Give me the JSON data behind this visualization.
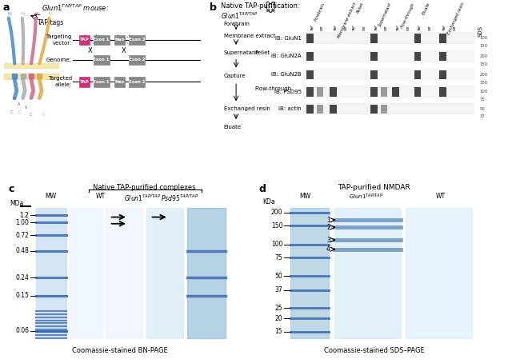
{
  "fig_width": 6.5,
  "fig_height": 4.54,
  "bg_color": "#ffffff",
  "panel_c": {
    "label": "c",
    "title": "Native TAP-purified complexes",
    "mw_label": "MDa",
    "mw_ticks": [
      1.2,
      1.0,
      0.72,
      0.48,
      0.24,
      0.15,
      0.06
    ],
    "lane_labels": [
      "MW",
      "WT",
      "Glun1",
      "Psd95"
    ],
    "xlabel": "Coomassie-stained BN-PAGE"
  },
  "panel_d": {
    "label": "d",
    "title": "TAP-purified NMDAR",
    "mw_label": "KDa",
    "mw_ticks": [
      200,
      150,
      100,
      75,
      50,
      37,
      25,
      20,
      15
    ],
    "lane_labels": [
      "MW",
      "Glun1",
      "WT"
    ],
    "xlabel": "Coomassie-stained SDS–PAGE",
    "bands": [
      {
        "label": "1",
        "kda": 170
      },
      {
        "label": "2",
        "kda": 145
      },
      {
        "label": "3",
        "kda": 110
      },
      {
        "label": "4",
        "kda": 90
      }
    ]
  }
}
